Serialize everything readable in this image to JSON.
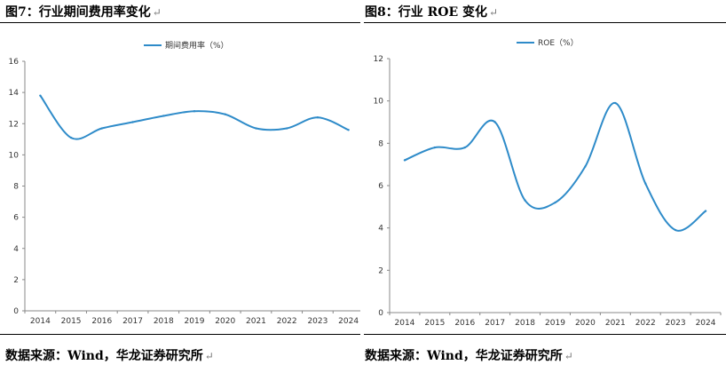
{
  "figures": {
    "left_caption": "图7：行业期间费用率变化",
    "right_caption": "图8：行业 ROE 变化",
    "return_mark": "↵"
  },
  "sources": {
    "left": "数据来源：Wind，华龙证券研究所",
    "right": "数据来源：Wind，华龙证券研究所"
  },
  "style": {
    "line_color": "#2e8bc9",
    "axis_color": "#888888"
  },
  "chart_data": [
    {
      "type": "line",
      "title": "",
      "xlabel": "",
      "ylabel": "",
      "x": [
        "2014",
        "2015",
        "2016",
        "2017",
        "2018",
        "2019",
        "2020",
        "2021",
        "2022",
        "2023",
        "2024"
      ],
      "series": [
        {
          "name": "期间费用率（%）",
          "values": [
            13.8,
            11.1,
            11.7,
            12.1,
            12.5,
            12.8,
            12.6,
            11.7,
            11.7,
            12.4,
            11.6
          ]
        }
      ],
      "ylim": [
        0,
        16
      ],
      "yticks": [
        0,
        2,
        4,
        6,
        8,
        10,
        12,
        14,
        16
      ],
      "legend": "top-center",
      "grid": false
    },
    {
      "type": "line",
      "title": "",
      "xlabel": "",
      "ylabel": "",
      "x": [
        "2014",
        "2015",
        "2016",
        "2017",
        "2018",
        "2019",
        "2020",
        "2021",
        "2022",
        "2023",
        "2024"
      ],
      "series": [
        {
          "name": "ROE（%）",
          "values": [
            7.2,
            7.8,
            7.8,
            9.0,
            5.3,
            5.2,
            6.9,
            9.9,
            6.1,
            3.9,
            4.8
          ]
        }
      ],
      "ylim": [
        0,
        12
      ],
      "yticks": [
        0,
        2,
        4,
        6,
        8,
        10,
        12
      ],
      "legend": "top-center",
      "grid": false
    }
  ]
}
